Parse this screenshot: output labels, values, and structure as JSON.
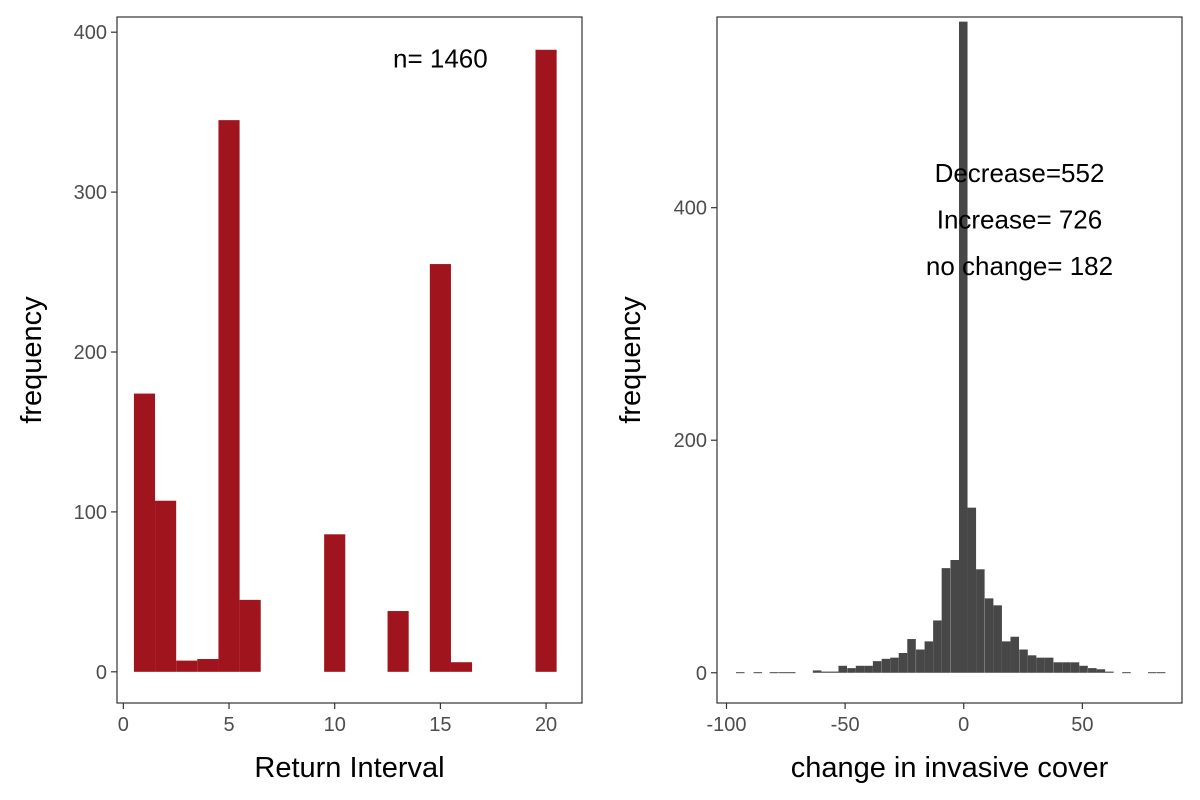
{
  "chart_data": [
    {
      "type": "bar",
      "subtype": "histogram",
      "xlabel": "Return Interval",
      "ylabel": "frequency",
      "xlim": [
        -0.3,
        21.7
      ],
      "ylim": [
        -19.5,
        409.5
      ],
      "xticks": [
        0,
        5,
        10,
        15,
        20
      ],
      "yticks": [
        0,
        100,
        200,
        300,
        400
      ],
      "bin_width": 1,
      "bar_color": "#A0141E",
      "grid": false,
      "annotation": {
        "text": "n= 1460",
        "x": 15,
        "y": 378
      },
      "bins": [
        {
          "x": 1,
          "value": 174
        },
        {
          "x": 2,
          "value": 107
        },
        {
          "x": 3,
          "value": 7
        },
        {
          "x": 4,
          "value": 8
        },
        {
          "x": 5,
          "value": 345
        },
        {
          "x": 6,
          "value": 45
        },
        {
          "x": 10,
          "value": 86
        },
        {
          "x": 13,
          "value": 38
        },
        {
          "x": 15,
          "value": 255
        },
        {
          "x": 16,
          "value": 6
        },
        {
          "x": 20,
          "value": 389
        }
      ]
    },
    {
      "type": "bar",
      "subtype": "histogram",
      "xlabel": "change in invasive cover",
      "ylabel": "frequency",
      "xlim": [
        -104,
        92
      ],
      "ylim": [
        -26,
        564
      ],
      "xticks": [
        -100,
        -50,
        0,
        50
      ],
      "yticks": [
        0,
        200,
        400
      ],
      "bin_width": 3.6,
      "bar_color": "#474747",
      "grid": false,
      "annotations": [
        {
          "text": "Decrease=552",
          "x": 23.5,
          "y": 430
        },
        {
          "text": "Increase= 726",
          "x": 23.5,
          "y": 390
        },
        {
          "text": "no change= 182",
          "x": 23.5,
          "y": 350
        }
      ],
      "bins": [
        {
          "x": -94.2,
          "value": 0.5
        },
        {
          "x": -86.8,
          "value": 0.5
        },
        {
          "x": -80.0,
          "value": 0.5
        },
        {
          "x": -76.3,
          "value": 0.5
        },
        {
          "x": -72.7,
          "value": 0.5
        },
        {
          "x": -61.8,
          "value": 2
        },
        {
          "x": -58.2,
          "value": 1
        },
        {
          "x": -54.6,
          "value": 1
        },
        {
          "x": -51.0,
          "value": 6
        },
        {
          "x": -47.3,
          "value": 4
        },
        {
          "x": -43.7,
          "value": 6
        },
        {
          "x": -40.1,
          "value": 6
        },
        {
          "x": -36.5,
          "value": 10
        },
        {
          "x": -32.8,
          "value": 12
        },
        {
          "x": -29.2,
          "value": 13
        },
        {
          "x": -25.6,
          "value": 17
        },
        {
          "x": -22.0,
          "value": 29
        },
        {
          "x": -18.3,
          "value": 20
        },
        {
          "x": -14.7,
          "value": 27
        },
        {
          "x": -11.1,
          "value": 45
        },
        {
          "x": -7.5,
          "value": 90
        },
        {
          "x": -3.8,
          "value": 97
        },
        {
          "x": -0.2,
          "value": 560
        },
        {
          "x": 3.4,
          "value": 142
        },
        {
          "x": 7.0,
          "value": 89
        },
        {
          "x": 10.7,
          "value": 64
        },
        {
          "x": 14.3,
          "value": 58
        },
        {
          "x": 17.9,
          "value": 27
        },
        {
          "x": 21.5,
          "value": 31
        },
        {
          "x": 25.2,
          "value": 20
        },
        {
          "x": 28.8,
          "value": 15
        },
        {
          "x": 32.4,
          "value": 13
        },
        {
          "x": 36.0,
          "value": 13
        },
        {
          "x": 39.7,
          "value": 9
        },
        {
          "x": 43.3,
          "value": 9
        },
        {
          "x": 46.9,
          "value": 9
        },
        {
          "x": 50.5,
          "value": 6
        },
        {
          "x": 54.2,
          "value": 4
        },
        {
          "x": 57.8,
          "value": 3
        },
        {
          "x": 61.4,
          "value": 1
        },
        {
          "x": 68.6,
          "value": 0.5
        },
        {
          "x": 79.5,
          "value": 0.5
        },
        {
          "x": 83.2,
          "value": 0.5
        }
      ]
    }
  ]
}
